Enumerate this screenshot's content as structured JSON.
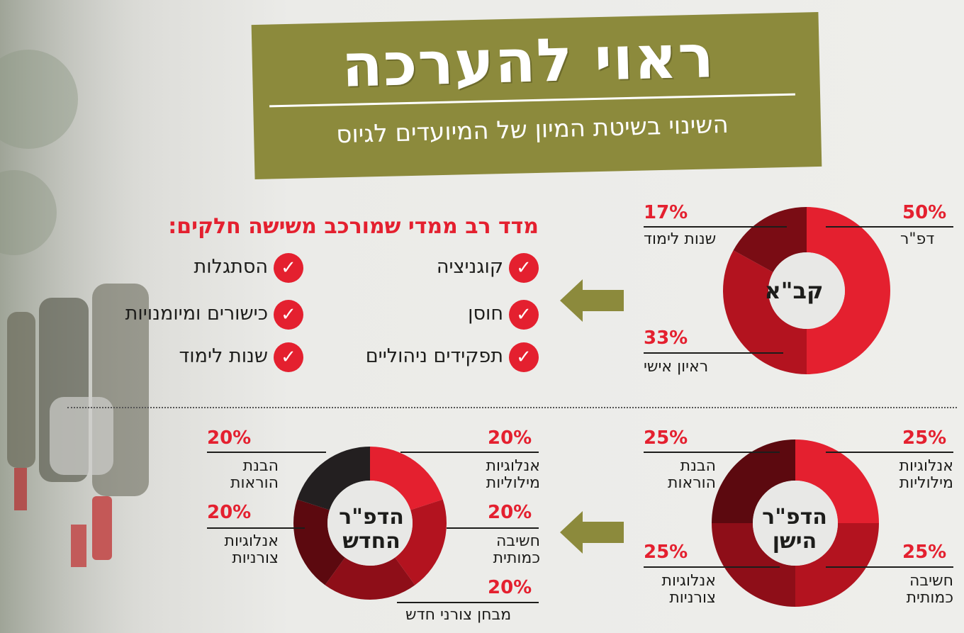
{
  "header": {
    "title": "ראוי להערכה",
    "subtitle": "השינוי בשיטת המיון של המיועדים לגיוס"
  },
  "components": {
    "heading": "מדד רב ממדי שמורכב משישה חלקים:",
    "items": [
      "קוגניציה",
      "חוסן",
      "תפקידים ניהוליים",
      "הסתגלות",
      "כישורים ומיומנויות",
      "שנות לימוד"
    ]
  },
  "colors": {
    "accent": "#e4202f",
    "olive": "#8c8a3c"
  },
  "icons": {
    "arrow": "arrow-left-icon",
    "check": "check-icon"
  },
  "chart_data": [
    {
      "type": "pie",
      "title": "קב\"א",
      "categories": [
        "דפ\"ר",
        "ראיון אישי",
        "שנות לימוד"
      ],
      "values": [
        50,
        33,
        17
      ],
      "percent_labels": [
        "50%",
        "33%",
        "17%"
      ],
      "colors": [
        "#e4202f",
        "#b3131f",
        "#7a0c14"
      ]
    },
    {
      "type": "pie",
      "title": "הדפ\"ר הישן",
      "categories": [
        "אנלוגיות מילוליות",
        "חשיבה כמותית",
        "אנלוגיות צורניות",
        "הבנת הוראות"
      ],
      "values": [
        25,
        25,
        25,
        25
      ],
      "percent_labels": [
        "25%",
        "25%",
        "25%",
        "25%"
      ],
      "colors": [
        "#e4202f",
        "#b3131f",
        "#8e0e18",
        "#5c090f"
      ]
    },
    {
      "type": "pie",
      "title": "הדפ\"ר החדש",
      "categories": [
        "אנלוגיות מילוליות",
        "חשיבה כמותית",
        "מבחן צורני חדש",
        "אנלוגיות צורניות",
        "הבנת הוראות"
      ],
      "values": [
        20,
        20,
        20,
        20,
        20
      ],
      "percent_labels": [
        "20%",
        "20%",
        "20%",
        "20%",
        "20%"
      ],
      "colors": [
        "#e4202f",
        "#b3131f",
        "#8e0e18",
        "#5c090f",
        "#231f20"
      ]
    }
  ]
}
